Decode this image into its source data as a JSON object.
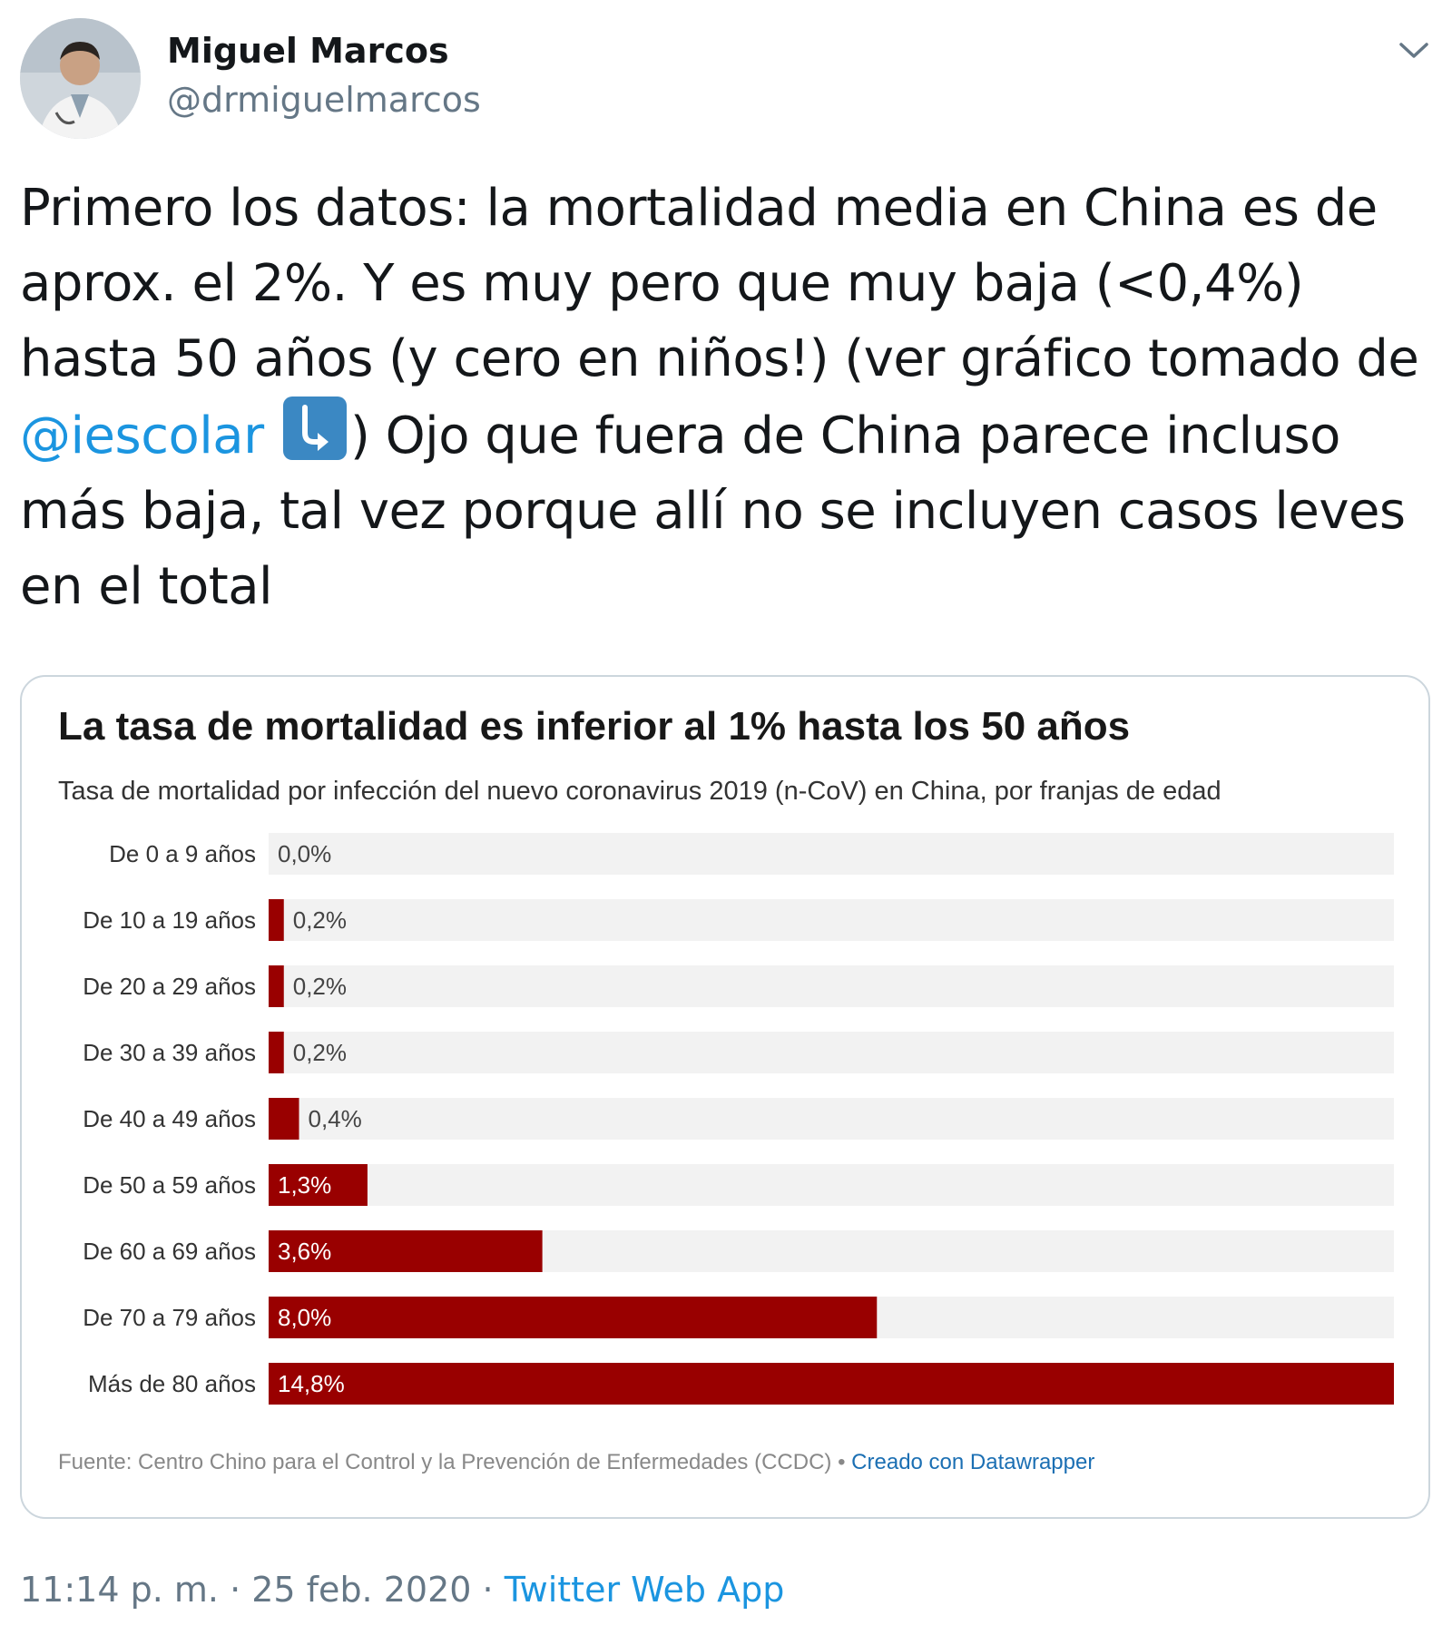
{
  "tweet": {
    "author_name": "Miguel Marcos",
    "author_handle": "@drmiguelmarcos",
    "text_line1": "Primero los datos: la mortalidad media en China es de",
    "text_line2": "aprox. el 2%. Y es muy pero que muy baja (<0,4%)",
    "text_line3": "hasta  50 años (y cero en niños!) (ver gráfico tomado de",
    "mention": "@iescolar",
    "text_line4_rest": ") Ojo que fuera de China parece incluso",
    "text_line5": "más baja, tal vez porque allí no se incluyen casos leves",
    "text_line6": "en el total",
    "emoji": "down-right-arrow-emoji",
    "time": "11:14 p. m.",
    "separator": "·",
    "date": "25 feb. 2020",
    "app": "Twitter Web App"
  },
  "chart_data": {
    "type": "bar",
    "orientation": "horizontal",
    "title": "La tasa de mortalidad es inferior al 1% hasta los 50 años",
    "subtitle": "Tasa de mortalidad por infección del nuevo coronavirus 2019 (n-CoV) en China, por franjas de edad",
    "categories": [
      "De 0 a 9 años",
      "De 10 a 19 años",
      "De 20 a 29 años",
      "De 30 a 39 años",
      "De 40 a 49 años",
      "De 50 a 59 años",
      "De 60 a 69 años",
      "De 70 a 79 años",
      "Más de 80 años"
    ],
    "values": [
      0.0,
      0.2,
      0.2,
      0.2,
      0.4,
      1.3,
      3.6,
      8.0,
      14.8
    ],
    "value_labels": [
      "0,0%",
      "0,2%",
      "0,2%",
      "0,2%",
      "0,4%",
      "1,3%",
      "3,6%",
      "8,0%",
      "14,8%"
    ],
    "xlim": [
      0,
      14.8
    ],
    "bar_color": "#990000",
    "track_color": "#f2f2f2",
    "source": "Fuente: Centro Chino para el Control y la Prevención de Enfermedades (CCDC)",
    "source_separator": " • ",
    "credit": "Creado con Datawrapper"
  },
  "colors": {
    "link": "#1b95e0",
    "secondary_text": "#657786",
    "card_border": "#ccd6dd"
  }
}
